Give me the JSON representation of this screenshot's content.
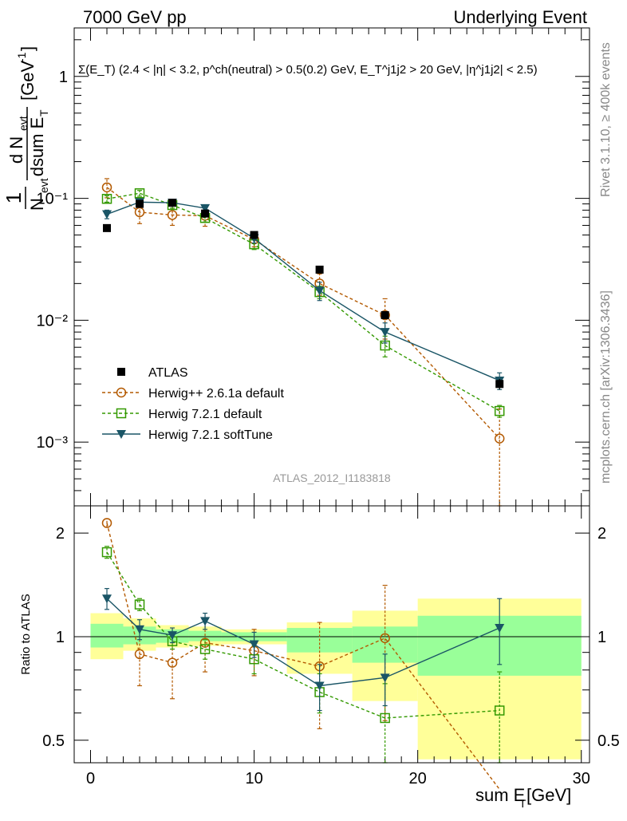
{
  "header": {
    "left_title": "7000 GeV pp",
    "right_title": "Underlying Event"
  },
  "side_labels": {
    "rivet": "Rivet 3.1.10, ≥ 400k events",
    "mcplots": "mcplots.cern.ch [arXiv:1306.3436]"
  },
  "annotations": {
    "cut_text": "Σ(E_T) (2.4 < |η| < 3.2, p^ch(neutral) > 0.5(0.2) GeV, E_T^j1j2 > 20 GeV, |η^j1j2| < 2.5)",
    "analysis_id": "ATLAS_2012_I1183818"
  },
  "colors": {
    "atlas": "#000000",
    "herwig_pp": "#b35900",
    "herwig_721": "#339900",
    "herwig_soft": "#1a5566",
    "band_yellow": "#ffff99",
    "band_green": "#99ff99"
  },
  "chart_data": [
    {
      "type": "scatter",
      "panel": "main",
      "ylabel": "1/N_evt dN_evt/dsum E_T [GeV^-1]",
      "ylabel_parts": {
        "frac1_num": "1",
        "frac1_den": "N",
        "frac1_den_sub": "evt",
        "frac2_num": "d N",
        "frac2_num_sub": "evt",
        "frac2_den": "dsum E",
        "frac2_den_sub": "T",
        "unit": "[GeV",
        "unit_sup": "-1",
        "unit_close": "]"
      },
      "y_scale": "log",
      "ylim": [
        0.0003,
        2.5
      ],
      "xlim": [
        -1,
        30.5
      ],
      "y_tick_labels": [
        "10⁻³",
        "10⁻²",
        "10⁻¹",
        "1"
      ],
      "legend_position": "bottom-left",
      "series": [
        {
          "name": "ATLAS",
          "x": [
            1,
            3,
            5,
            7,
            10,
            14,
            18,
            25
          ],
          "y": [
            0.057,
            0.09,
            0.092,
            0.075,
            0.05,
            0.026,
            0.011,
            0.003
          ],
          "yerr": [
            0.002,
            0.003,
            0.003,
            0.003,
            0.002,
            0.001,
            0.0006,
            0.0003
          ]
        },
        {
          "name": "Herwig++ 2.6.1a default",
          "x": [
            1,
            3,
            5,
            7,
            10,
            14,
            18,
            25
          ],
          "y": [
            0.123,
            0.077,
            0.073,
            0.072,
            0.046,
            0.02,
            0.011,
            0.00107
          ],
          "yerr": [
            0.022,
            0.015,
            0.013,
            0.013,
            0.006,
            0.004,
            0.004,
            0.0008
          ]
        },
        {
          "name": "Herwig 7.2.1 default",
          "x": [
            1,
            3,
            5,
            7,
            10,
            14,
            18,
            25
          ],
          "y": [
            0.099,
            0.11,
            0.088,
            0.069,
            0.042,
            0.017,
            0.0062,
            0.0018
          ],
          "yerr": [
            0.006,
            0.006,
            0.005,
            0.005,
            0.004,
            0.002,
            0.0012,
            0.0002
          ]
        },
        {
          "name": "Herwig 7.2.1 softTune",
          "x": [
            1,
            3,
            5,
            7,
            10,
            14,
            18,
            25
          ],
          "y": [
            0.074,
            0.093,
            0.092,
            0.083,
            0.047,
            0.0175,
            0.008,
            0.0032
          ],
          "yerr": [
            0.006,
            0.006,
            0.005,
            0.005,
            0.004,
            0.003,
            0.0015,
            0.0005
          ]
        }
      ]
    },
    {
      "type": "line",
      "panel": "ratio",
      "xlabel": "sum E_T [GeV]",
      "xlabel_parts": {
        "main": "sum E",
        "sub": "T",
        "unit": " [GeV]"
      },
      "ylabel": "Ratio to ATLAS",
      "ylim": [
        0.43,
        2.4
      ],
      "xlim": [
        -1,
        30.5
      ],
      "x_ticks": [
        0,
        10,
        20,
        30
      ],
      "y_ticks": [
        0.5,
        1,
        2
      ],
      "bins": [
        {
          "x_low": 0,
          "x_high": 2,
          "green": [
            0.93,
            1.09
          ],
          "yellow": [
            0.86,
            1.17
          ]
        },
        {
          "x_low": 2,
          "x_high": 4,
          "green": [
            0.95,
            1.07
          ],
          "yellow": [
            0.91,
            1.13
          ]
        },
        {
          "x_low": 4,
          "x_high": 6,
          "green": [
            0.96,
            1.05
          ],
          "yellow": [
            0.93,
            1.08
          ]
        },
        {
          "x_low": 6,
          "x_high": 8,
          "green": [
            0.97,
            1.04
          ],
          "yellow": [
            0.94,
            1.07
          ]
        },
        {
          "x_low": 8,
          "x_high": 12,
          "green": [
            0.97,
            1.03
          ],
          "yellow": [
            0.95,
            1.05
          ]
        },
        {
          "x_low": 12,
          "x_high": 16,
          "green": [
            0.9,
            1.06
          ],
          "yellow": [
            0.78,
            1.1
          ]
        },
        {
          "x_low": 16,
          "x_high": 20,
          "green": [
            0.84,
            1.07
          ],
          "yellow": [
            0.65,
            1.19
          ]
        },
        {
          "x_low": 20,
          "x_high": 30,
          "green": [
            0.77,
            1.15
          ],
          "yellow": [
            0.44,
            1.29
          ]
        }
      ],
      "series": [
        {
          "name": "Herwig++ 2.6.1a default",
          "x": [
            1,
            3,
            5,
            7,
            10,
            14,
            18,
            25
          ],
          "y": [
            2.14,
            0.89,
            0.84,
            0.96,
            0.91,
            0.82,
            0.99,
            0.36
          ],
          "yerr": [
            0.06,
            0.17,
            0.18,
            0.17,
            0.14,
            0.28,
            0.42,
            0.0
          ]
        },
        {
          "name": "Herwig 7.2.1 default",
          "x": [
            1,
            3,
            5,
            7,
            10,
            14,
            18,
            25
          ],
          "y": [
            1.76,
            1.24,
            0.97,
            0.92,
            0.86,
            0.69,
            0.58,
            0.61
          ],
          "yerr": [
            0.07,
            0.05,
            0.05,
            0.06,
            0.08,
            0.09,
            0.15,
            0.18
          ]
        },
        {
          "name": "Herwig 7.2.1 softTune",
          "x": [
            1,
            3,
            5,
            7,
            10,
            14,
            18,
            25
          ],
          "y": [
            1.29,
            1.05,
            1.01,
            1.11,
            0.95,
            0.72,
            0.76,
            1.06
          ],
          "yerr": [
            0.09,
            0.07,
            0.05,
            0.06,
            0.08,
            0.11,
            0.13,
            0.23
          ]
        }
      ]
    }
  ]
}
